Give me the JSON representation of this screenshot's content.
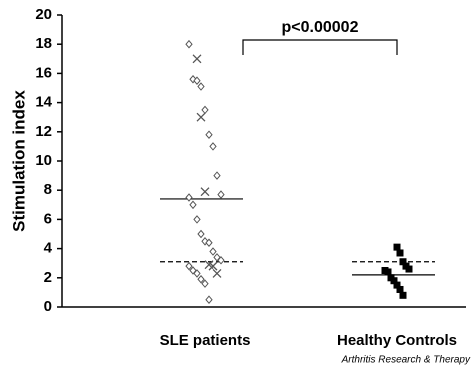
{
  "chart_data": {
    "type": "strip",
    "ylabel": "Stimulation index",
    "categories": [
      "SLE patients",
      "Healthy Controls"
    ],
    "ylim": [
      0,
      20
    ],
    "yticks": [
      0,
      2,
      4,
      6,
      8,
      10,
      12,
      14,
      16,
      18,
      20
    ],
    "series": [
      {
        "category": 0,
        "marker": "diamond",
        "color": "#555555",
        "values": [
          18.0,
          15.6,
          15.5,
          15.1,
          13.5,
          11.8,
          11.0,
          9.0,
          7.7,
          7.5,
          7.0,
          6.0,
          5.0,
          4.5,
          4.4,
          3.8,
          3.4,
          3.2,
          2.8,
          2.5,
          2.3,
          1.9,
          1.6,
          0.5
        ]
      },
      {
        "category": 0,
        "marker": "x",
        "color": "#555555",
        "values": [
          17.0,
          13.0,
          7.9,
          2.9,
          2.8,
          2.3
        ]
      },
      {
        "category": 1,
        "marker": "square",
        "color": "#000000",
        "values": [
          4.1,
          3.7,
          3.1,
          2.8,
          2.6,
          2.5,
          2.4,
          2.0,
          1.8,
          1.5,
          1.2,
          0.8
        ]
      }
    ],
    "reference_lines": [
      {
        "category": 0,
        "value": 7.4,
        "style": "solid"
      },
      {
        "category": 0,
        "value": 3.1,
        "style": "dashed"
      },
      {
        "category": 1,
        "value": 2.2,
        "style": "solid"
      },
      {
        "category": 1,
        "value": 3.1,
        "style": "dashed"
      }
    ],
    "annotation": {
      "text": "p<0.00002",
      "from": 0,
      "to": 1
    },
    "source": "Arthritis Research & Therapy"
  }
}
